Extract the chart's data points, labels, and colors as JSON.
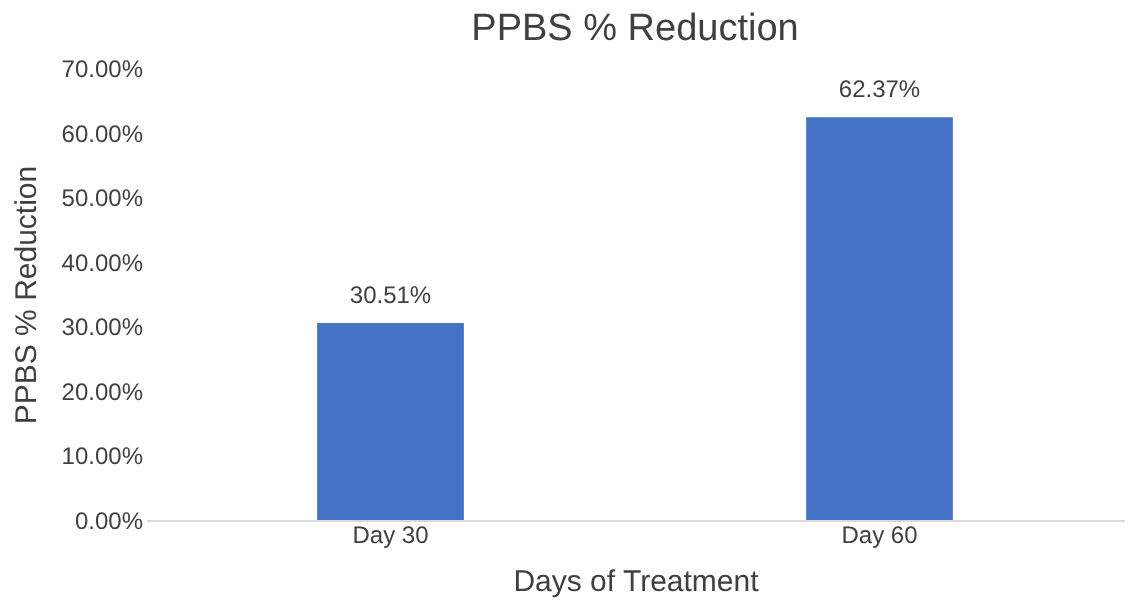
{
  "chart_data": {
    "type": "bar",
    "title": "PPBS % Reduction",
    "xlabel": "Days of Treatment",
    "ylabel": "PPBS % Reduction",
    "categories": [
      "Day 30",
      "Day 60"
    ],
    "values": [
      30.51,
      62.37
    ],
    "color": "#4472c4",
    "value_labels": [
      "30.51%",
      "62.37%"
    ],
    "ylim": [
      0,
      70
    ],
    "yticks": [
      {
        "value": 0,
        "label": "0.00%"
      },
      {
        "value": 10,
        "label": "10.00%"
      },
      {
        "value": 20,
        "label": "20.00%"
      },
      {
        "value": 30,
        "label": "30.00%"
      },
      {
        "value": 40,
        "label": "40.00%"
      },
      {
        "value": 50,
        "label": "50.00%"
      },
      {
        "value": 60,
        "label": "60.00%"
      },
      {
        "value": 70,
        "label": "70.00%"
      }
    ],
    "grid": false
  }
}
